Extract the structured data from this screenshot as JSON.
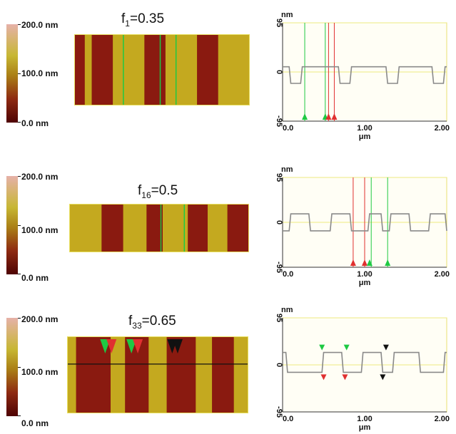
{
  "chart_data": [
    {
      "type": "heatmap",
      "title": "f",
      "title_sub": "1",
      "title_suffix": "=0.35",
      "colorbar": {
        "max_label": "200.0 nm",
        "mid_label": "100.0 nm",
        "min_label": "0.0 nm"
      },
      "stripes": [
        {
          "x0": 0.0,
          "x1": 0.06,
          "level": "low"
        },
        {
          "x0": 0.06,
          "x1": 0.1,
          "level": "high"
        },
        {
          "x0": 0.1,
          "x1": 0.22,
          "level": "low"
        },
        {
          "x0": 0.22,
          "x1": 0.4,
          "level": "high"
        },
        {
          "x0": 0.4,
          "x1": 0.52,
          "level": "low"
        },
        {
          "x0": 0.52,
          "x1": 0.7,
          "level": "high"
        },
        {
          "x0": 0.7,
          "x1": 0.82,
          "level": "low"
        },
        {
          "x0": 0.82,
          "x1": 1.0,
          "level": "high"
        }
      ],
      "marker_lines": [
        {
          "x": 0.28,
          "color": "#1ec943"
        },
        {
          "x": 0.49,
          "color": "#1ec943"
        },
        {
          "x": 0.58,
          "color": "#1ec943"
        }
      ]
    },
    {
      "type": "line",
      "ylabel": "nm",
      "xlabel": "μm",
      "y_max_label": "95",
      "y_mid_label": "0",
      "y_min_label": "-95",
      "x_ticks": [
        "0.0",
        "1.00",
        "2.00"
      ],
      "xlim": [
        0,
        2
      ],
      "ylim": [
        -95,
        95
      ],
      "points": [
        [
          0.0,
          10
        ],
        [
          0.08,
          10
        ],
        [
          0.1,
          -22
        ],
        [
          0.22,
          -22
        ],
        [
          0.24,
          10
        ],
        [
          0.68,
          10
        ],
        [
          0.7,
          -22
        ],
        [
          0.82,
          -22
        ],
        [
          0.84,
          10
        ],
        [
          1.26,
          10
        ],
        [
          1.28,
          -22
        ],
        [
          1.4,
          -22
        ],
        [
          1.42,
          10
        ],
        [
          1.82,
          10
        ],
        [
          1.84,
          -22
        ],
        [
          1.96,
          -22
        ],
        [
          1.98,
          10
        ],
        [
          2.0,
          10
        ]
      ],
      "vlines": [
        {
          "x": 0.27,
          "color": "#1ec943"
        },
        {
          "x": 0.52,
          "color": "#1ec943"
        },
        {
          "x": 0.56,
          "color": "#e03030"
        },
        {
          "x": 0.63,
          "color": "#e03030"
        }
      ],
      "markers": [
        {
          "x": 0.27,
          "color": "#1ec943",
          "at": "bottom"
        },
        {
          "x": 0.52,
          "color": "#1ec943",
          "at": "bottom"
        },
        {
          "x": 0.56,
          "color": "#e03030",
          "at": "bottom"
        },
        {
          "x": 0.63,
          "color": "#e03030",
          "at": "bottom"
        }
      ]
    },
    {
      "type": "heatmap",
      "title": "f",
      "title_sub": "16",
      "title_suffix": "=0.5",
      "colorbar": {
        "max_label": "200.0 nm",
        "mid_label": "100.0 nm",
        "min_label": "0.0 nm"
      },
      "stripes": [
        {
          "x0": 0.0,
          "x1": 0.18,
          "level": "high"
        },
        {
          "x0": 0.18,
          "x1": 0.3,
          "level": "low"
        },
        {
          "x0": 0.3,
          "x1": 0.43,
          "level": "high"
        },
        {
          "x0": 0.43,
          "x1": 0.52,
          "level": "low"
        },
        {
          "x0": 0.52,
          "x1": 0.66,
          "level": "high"
        },
        {
          "x0": 0.66,
          "x1": 0.77,
          "level": "low"
        },
        {
          "x0": 0.77,
          "x1": 0.88,
          "level": "high"
        },
        {
          "x0": 0.88,
          "x1": 1.0,
          "level": "low"
        }
      ],
      "marker_lines": [
        {
          "x": 0.51,
          "color": "#1ec943"
        },
        {
          "x": 0.64,
          "color": "#1ec943"
        }
      ]
    },
    {
      "type": "line",
      "ylabel": "nm",
      "xlabel": "μm",
      "y_max_label": "95",
      "y_mid_label": "0",
      "y_min_label": "-95",
      "x_ticks": [
        "0.0",
        "1.00",
        "2.00"
      ],
      "xlim": [
        0,
        2
      ],
      "ylim": [
        -95,
        95
      ],
      "points": [
        [
          0.0,
          -18
        ],
        [
          0.08,
          -18
        ],
        [
          0.1,
          18
        ],
        [
          0.32,
          18
        ],
        [
          0.34,
          -18
        ],
        [
          0.58,
          -18
        ],
        [
          0.6,
          18
        ],
        [
          0.82,
          18
        ],
        [
          0.84,
          -18
        ],
        [
          1.04,
          -18
        ],
        [
          1.06,
          18
        ],
        [
          1.2,
          18
        ],
        [
          1.22,
          -18
        ],
        [
          1.3,
          -18
        ],
        [
          1.32,
          18
        ],
        [
          1.54,
          18
        ],
        [
          1.56,
          -18
        ],
        [
          1.78,
          -18
        ],
        [
          1.8,
          18
        ],
        [
          1.98,
          18
        ],
        [
          2.0,
          -18
        ]
      ],
      "vlines": [
        {
          "x": 0.86,
          "color": "#e03030"
        },
        {
          "x": 1.0,
          "color": "#e03030"
        },
        {
          "x": 1.08,
          "color": "#1ec943"
        },
        {
          "x": 1.28,
          "color": "#1ec943"
        }
      ],
      "markers": [
        {
          "x": 0.86,
          "color": "#e03030",
          "at": "bottom"
        },
        {
          "x": 1.0,
          "color": "#e03030",
          "at": "bottom"
        },
        {
          "x": 1.06,
          "color": "#1ec943",
          "at": "bottom"
        },
        {
          "x": 1.28,
          "color": "#1ec943",
          "at": "bottom"
        }
      ]
    },
    {
      "type": "heatmap",
      "title": "f",
      "title_sub": "33",
      "title_suffix": "=0.65",
      "colorbar": {
        "max_label": "200.0 nm",
        "mid_label": "100.0 nm",
        "min_label": "0.0 nm"
      },
      "stripes": [
        {
          "x0": 0.0,
          "x1": 0.05,
          "level": "high"
        },
        {
          "x0": 0.05,
          "x1": 0.24,
          "level": "low"
        },
        {
          "x0": 0.24,
          "x1": 0.32,
          "level": "high"
        },
        {
          "x0": 0.32,
          "x1": 0.45,
          "level": "low"
        },
        {
          "x0": 0.45,
          "x1": 0.55,
          "level": "high"
        },
        {
          "x0": 0.55,
          "x1": 0.71,
          "level": "low"
        },
        {
          "x0": 0.71,
          "x1": 0.8,
          "level": "high"
        },
        {
          "x0": 0.8,
          "x1": 0.92,
          "level": "low"
        },
        {
          "x0": 0.92,
          "x1": 1.0,
          "level": "high"
        }
      ],
      "marker_lines": [],
      "horizontal_line_y": 0.36,
      "markers": [
        {
          "x": 0.21,
          "color": "#1ec943"
        },
        {
          "x": 0.245,
          "color": "#e03030"
        },
        {
          "x": 0.355,
          "color": "#1ec943"
        },
        {
          "x": 0.39,
          "color": "#e03030"
        },
        {
          "x": 0.58,
          "color": "#111111"
        },
        {
          "x": 0.61,
          "color": "#111111"
        }
      ]
    },
    {
      "type": "line",
      "ylabel": "nm",
      "xlabel": "μm",
      "y_max_label": "95",
      "y_mid_label": "0",
      "y_min_label": "-95",
      "x_ticks": [
        "0.0",
        "1.00",
        "2.00"
      ],
      "xlim": [
        0,
        2
      ],
      "ylim": [
        -95,
        95
      ],
      "points": [
        [
          0.0,
          25
        ],
        [
          0.04,
          25
        ],
        [
          0.06,
          -15
        ],
        [
          0.48,
          -15
        ],
        [
          0.5,
          25
        ],
        [
          0.72,
          25
        ],
        [
          0.74,
          -15
        ],
        [
          0.96,
          -15
        ],
        [
          0.98,
          25
        ],
        [
          1.2,
          25
        ],
        [
          1.22,
          -15
        ],
        [
          1.34,
          -15
        ],
        [
          1.36,
          25
        ],
        [
          1.66,
          25
        ],
        [
          1.68,
          -15
        ],
        [
          1.96,
          -15
        ],
        [
          1.98,
          25
        ],
        [
          2.0,
          25
        ]
      ],
      "vlines": [],
      "markers": [
        {
          "x": 0.48,
          "color": "#1ec943",
          "at": "high"
        },
        {
          "x": 0.78,
          "color": "#1ec943",
          "at": "high"
        },
        {
          "x": 0.5,
          "color": "#e03030",
          "at": "low"
        },
        {
          "x": 0.76,
          "color": "#e03030",
          "at": "low"
        },
        {
          "x": 1.22,
          "color": "#111111",
          "at": "low"
        },
        {
          "x": 1.26,
          "color": "#111111",
          "at": "high"
        }
      ]
    }
  ]
}
